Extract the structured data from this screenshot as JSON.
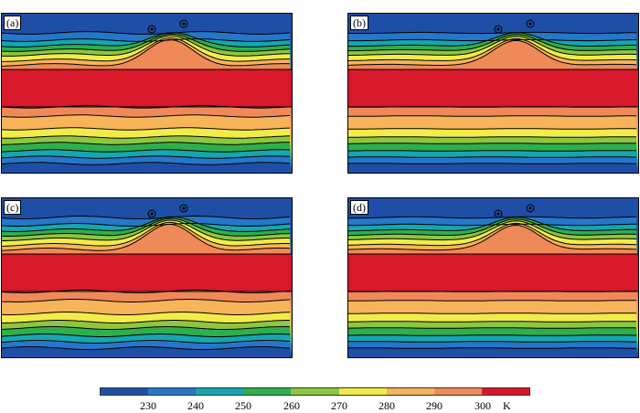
{
  "panels": [
    {
      "id": "a",
      "label": "(a)"
    },
    {
      "id": "b",
      "label": "(b)"
    },
    {
      "id": "c",
      "label": "(c)"
    },
    {
      "id": "d",
      "label": "(d)"
    }
  ],
  "colorbar": {
    "colors": [
      "#1f4ea6",
      "#2577c9",
      "#16a6b0",
      "#2fae4e",
      "#8ec63f",
      "#f2ec4a",
      "#f7b45a",
      "#ef8a58",
      "#d7192b"
    ],
    "ticks": [
      "230",
      "240",
      "250",
      "260",
      "270",
      "280",
      "290",
      "300"
    ],
    "unit": "K"
  }
}
